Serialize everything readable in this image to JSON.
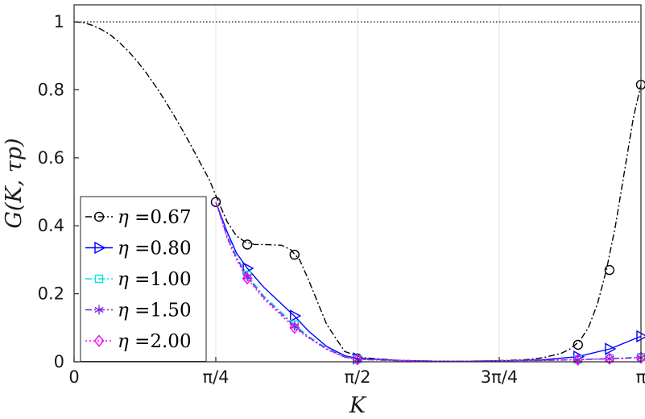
{
  "chart_data": {
    "type": "line",
    "xlabel": "K",
    "ylabel": "G(K, τp)",
    "xlim": [
      0,
      3.14159
    ],
    "ylim": [
      0,
      1.05
    ],
    "grid": "vertical",
    "legend_position": "lower-left",
    "x_ticks": [
      {
        "value": 0,
        "label": "0"
      },
      {
        "value": 0.7854,
        "label": "π/4"
      },
      {
        "value": 1.5708,
        "label": "π/2"
      },
      {
        "value": 2.3562,
        "label": "3π/4"
      },
      {
        "value": 3.1416,
        "label": "π"
      }
    ],
    "y_ticks": [
      {
        "value": 0,
        "label": "0"
      },
      {
        "value": 0.2,
        "label": "0.2"
      },
      {
        "value": 0.4,
        "label": "0.4"
      },
      {
        "value": 0.6,
        "label": "0.6"
      },
      {
        "value": 0.8,
        "label": "0.8"
      },
      {
        "value": 1,
        "label": "1"
      }
    ],
    "reference_line": {
      "y": 1.0,
      "style": "dotted",
      "color": "#000000"
    },
    "series": [
      {
        "name": "η =0.67",
        "legend_eta": "η",
        "legend_value": "=0.67",
        "color": "#000000",
        "dash": "8,3,2,3",
        "marker": "circle",
        "x": [
          0,
          0.05,
          0.1,
          0.15,
          0.2,
          0.25,
          0.3,
          0.35,
          0.4,
          0.45,
          0.5,
          0.55,
          0.6,
          0.65,
          0.7,
          0.75,
          0.8,
          0.85,
          0.9,
          0.95,
          1.0,
          1.05,
          1.1,
          1.15,
          1.2,
          1.25,
          1.3,
          1.4,
          1.5,
          1.6,
          1.8,
          2.0,
          2.2,
          2.4,
          2.5,
          2.6,
          2.7,
          2.75,
          2.8,
          2.85,
          2.9,
          2.95,
          3.0,
          3.05,
          3.1,
          3.1416
        ],
        "y": [
          1.0,
          0.998,
          0.99,
          0.978,
          0.962,
          0.94,
          0.914,
          0.884,
          0.85,
          0.812,
          0.772,
          0.728,
          0.682,
          0.634,
          0.584,
          0.535,
          0.47,
          0.41,
          0.37,
          0.352,
          0.345,
          0.345,
          0.344,
          0.343,
          0.33,
          0.3,
          0.24,
          0.11,
          0.03,
          0.012,
          0.004,
          0.002,
          0.002,
          0.004,
          0.006,
          0.012,
          0.025,
          0.038,
          0.06,
          0.1,
          0.17,
          0.27,
          0.4,
          0.56,
          0.72,
          0.815
        ],
        "marker_x": [
          0.7854,
          0.9599,
          1.2217,
          1.5708,
          2.7925,
          2.9671,
          3.1416
        ],
        "marker_y": [
          0.47,
          0.345,
          0.315,
          0.01,
          0.05,
          0.27,
          0.815
        ]
      },
      {
        "name": "η =0.80",
        "legend_eta": "η",
        "legend_value": "=0.80",
        "color": "#0000ff",
        "dash": "",
        "marker": "triangle-right",
        "x": [
          0.7854,
          0.85,
          0.9,
          0.96,
          1.05,
          1.15,
          1.22,
          1.3,
          1.4,
          1.5,
          1.57,
          1.8,
          2.0,
          2.2,
          2.4,
          2.6,
          2.79,
          2.97,
          3.1416
        ],
        "y": [
          0.47,
          0.38,
          0.32,
          0.275,
          0.22,
          0.17,
          0.135,
          0.09,
          0.045,
          0.018,
          0.01,
          0.004,
          0.002,
          0.002,
          0.003,
          0.006,
          0.015,
          0.038,
          0.075
        ],
        "marker_x": [
          0.9599,
          1.2217,
          1.5708,
          2.7925,
          2.9671,
          3.1416
        ],
        "marker_y": [
          0.275,
          0.135,
          0.01,
          0.015,
          0.038,
          0.075
        ]
      },
      {
        "name": "η =1.00",
        "legend_eta": "η",
        "legend_value": "=1.00",
        "color": "#00e5e5",
        "dash": "8,3,2,3",
        "marker": "square",
        "x": [
          0.7854,
          0.85,
          0.9,
          0.96,
          1.05,
          1.15,
          1.22,
          1.3,
          1.4,
          1.5,
          1.57,
          1.8,
          2.0,
          2.2,
          2.4,
          2.6,
          2.79,
          2.97,
          3.1416
        ],
        "y": [
          0.47,
          0.37,
          0.31,
          0.255,
          0.195,
          0.145,
          0.11,
          0.075,
          0.04,
          0.015,
          0.008,
          0.003,
          0.002,
          0.002,
          0.003,
          0.004,
          0.007,
          0.01,
          0.014
        ],
        "marker_x": [
          0.9599,
          1.2217,
          1.5708,
          2.7925,
          2.9671,
          3.1416
        ],
        "marker_y": [
          0.255,
          0.11,
          0.008,
          0.007,
          0.01,
          0.014
        ]
      },
      {
        "name": "η =1.50",
        "legend_eta": "η",
        "legend_value": "=1.50",
        "color": "#7a1fd6",
        "dash": "8,3,2,3",
        "marker": "asterisk",
        "x": [
          0.7854,
          0.85,
          0.9,
          0.96,
          1.05,
          1.15,
          1.22,
          1.3,
          1.4,
          1.5,
          1.57,
          1.8,
          2.0,
          2.2,
          2.4,
          2.6,
          2.79,
          2.97,
          3.1416
        ],
        "y": [
          0.47,
          0.365,
          0.305,
          0.25,
          0.19,
          0.14,
          0.105,
          0.072,
          0.038,
          0.014,
          0.007,
          0.003,
          0.002,
          0.002,
          0.003,
          0.004,
          0.006,
          0.009,
          0.012
        ],
        "marker_x": [
          0.9599,
          1.2217,
          1.5708,
          2.7925,
          2.9671,
          3.1416
        ],
        "marker_y": [
          0.25,
          0.105,
          0.007,
          0.006,
          0.009,
          0.012
        ]
      },
      {
        "name": "η =2.00",
        "legend_eta": "η",
        "legend_value": "=2.00",
        "color": "#ff00ff",
        "dash": "2,3",
        "marker": "diamond",
        "x": [
          0.7854,
          0.85,
          0.9,
          0.96,
          1.05,
          1.15,
          1.22,
          1.3,
          1.4,
          1.5,
          1.57,
          1.8,
          2.0,
          2.2,
          2.4,
          2.6,
          2.79,
          2.97,
          3.1416
        ],
        "y": [
          0.47,
          0.36,
          0.3,
          0.245,
          0.185,
          0.135,
          0.1,
          0.07,
          0.036,
          0.013,
          0.007,
          0.003,
          0.002,
          0.002,
          0.003,
          0.004,
          0.006,
          0.009,
          0.012
        ],
        "marker_x": [
          0.9599,
          1.2217,
          1.5708,
          2.7925,
          2.9671,
          3.1416
        ],
        "marker_y": [
          0.245,
          0.1,
          0.007,
          0.006,
          0.009,
          0.012
        ]
      }
    ]
  }
}
